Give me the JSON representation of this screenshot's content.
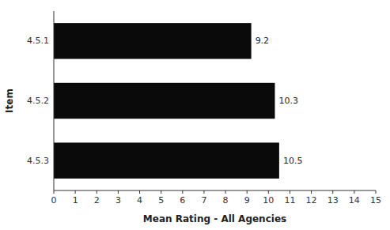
{
  "chart_data": {
    "type": "bar",
    "orientation": "horizontal",
    "categories": [
      "4.5.1",
      "4.5.2",
      "4.5.3"
    ],
    "values": [
      9.2,
      10.3,
      10.5
    ],
    "color": "#0a0a0a",
    "xlabel": "Mean Rating - All Agencies",
    "ylabel": "Item",
    "xlim": [
      0,
      15
    ],
    "xticks": [
      0,
      1,
      2,
      3,
      4,
      5,
      6,
      7,
      8,
      9,
      10,
      11,
      12,
      13,
      14,
      15
    ],
    "data_labels": true,
    "grid": false
  }
}
